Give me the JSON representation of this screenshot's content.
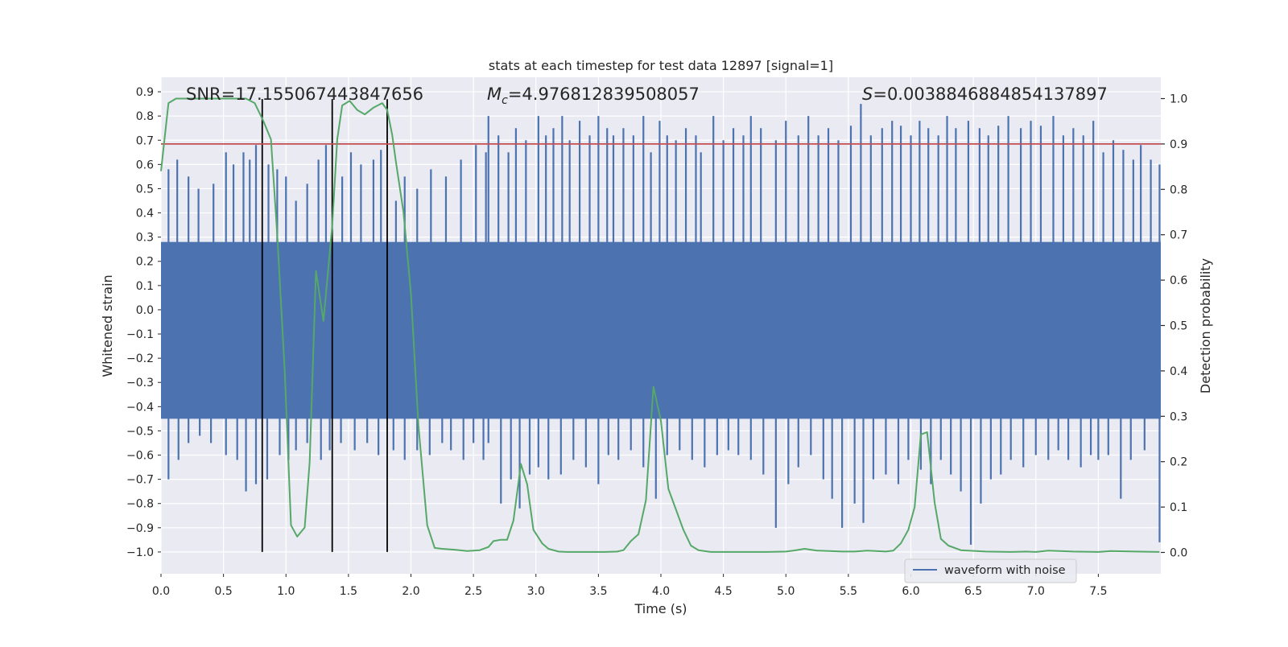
{
  "chart_data": {
    "type": "line",
    "title": "stats at each timestep for test data 12897 [signal=1]",
    "xlabel": "Time (s)",
    "ylabel": "Whitened strain",
    "y2label": "Detection probability",
    "xlim": [
      0.0,
      8.0
    ],
    "ylim": [
      -1.09,
      0.96
    ],
    "y2lim": [
      -0.047,
      1.047
    ],
    "xticks": [
      0.0,
      0.5,
      1.0,
      1.5,
      2.0,
      2.5,
      3.0,
      3.5,
      4.0,
      4.5,
      5.0,
      5.5,
      6.0,
      6.5,
      7.0,
      7.5
    ],
    "xtick_labels": [
      "0.0",
      "0.5",
      "1.0",
      "1.5",
      "2.0",
      "2.5",
      "3.0",
      "3.5",
      "4.0",
      "4.5",
      "5.0",
      "5.5",
      "6.0",
      "6.5",
      "7.0",
      "7.5"
    ],
    "yticks": [
      0.9,
      0.8,
      0.7,
      0.6,
      0.5,
      0.4,
      0.3,
      0.2,
      0.1,
      0.0,
      -0.1,
      -0.2,
      -0.3,
      -0.4,
      -0.5,
      -0.6,
      -0.7,
      -0.8,
      -0.9,
      -1.0
    ],
    "ytick_labels": [
      "0.9",
      "0.8",
      "0.7",
      "0.6",
      "0.5",
      "0.4",
      "0.3",
      "0.2",
      "0.1",
      "0.0",
      "−0.1",
      "−0.2",
      "−0.3",
      "−0.4",
      "−0.5",
      "−0.6",
      "−0.7",
      "−0.8",
      "−0.9",
      "−1.0"
    ],
    "y2ticks": [
      1.0,
      0.9,
      0.8,
      0.7,
      0.6,
      0.5,
      0.4,
      0.3,
      0.2,
      0.1,
      0.0
    ],
    "y2tick_labels": [
      "1.0",
      "0.9",
      "0.8",
      "0.7",
      "0.6",
      "0.5",
      "0.4",
      "0.3",
      "0.2",
      "0.1",
      "0.0"
    ],
    "grid": true,
    "legend": {
      "position": "lower-right",
      "entries": [
        "waveform with noise"
      ]
    },
    "annotations": {
      "snr": "SNR=17.155067443847656",
      "mc_symbol": "M",
      "mc_sub": "c",
      "mc_value": "=4.976812839508057",
      "s_symbol": "S",
      "s_value": "=0.0038846884854137897"
    },
    "threshold": {
      "axis": "y2",
      "value": 0.9,
      "color": "#c44e52"
    },
    "vertical_lines": {
      "x": [
        0.81,
        1.37,
        1.81
      ],
      "ymin": -1.0,
      "ymax": 0.87,
      "color": "#000000"
    },
    "waveform": {
      "name": "waveform with noise",
      "color": "#4c72b0",
      "band_strain": [
        -0.45,
        0.28
      ],
      "peaks": [
        [
          0.06,
          0.58
        ],
        [
          0.13,
          0.62
        ],
        [
          0.22,
          0.55
        ],
        [
          0.3,
          0.5
        ],
        [
          0.42,
          0.52
        ],
        [
          0.52,
          0.65
        ],
        [
          0.58,
          0.6
        ],
        [
          0.66,
          0.65
        ],
        [
          0.71,
          0.62
        ],
        [
          0.76,
          0.68
        ],
        [
          0.86,
          0.6
        ],
        [
          0.93,
          0.58
        ],
        [
          1.0,
          0.55
        ],
        [
          1.08,
          0.45
        ],
        [
          1.17,
          0.52
        ],
        [
          1.26,
          0.62
        ],
        [
          1.32,
          0.68
        ],
        [
          1.45,
          0.55
        ],
        [
          1.52,
          0.65
        ],
        [
          1.6,
          0.6
        ],
        [
          1.7,
          0.62
        ],
        [
          1.76,
          0.66
        ],
        [
          1.88,
          0.45
        ],
        [
          1.95,
          0.55
        ],
        [
          2.05,
          0.5
        ],
        [
          2.16,
          0.58
        ],
        [
          2.28,
          0.55
        ],
        [
          2.4,
          0.62
        ],
        [
          2.52,
          0.68
        ],
        [
          2.6,
          0.65
        ],
        [
          2.62,
          0.8
        ],
        [
          2.7,
          0.72
        ],
        [
          2.78,
          0.65
        ],
        [
          2.84,
          0.75
        ],
        [
          2.92,
          0.7
        ],
        [
          3.02,
          0.8
        ],
        [
          3.08,
          0.72
        ],
        [
          3.14,
          0.75
        ],
        [
          3.21,
          0.8
        ],
        [
          3.27,
          0.7
        ],
        [
          3.35,
          0.78
        ],
        [
          3.43,
          0.72
        ],
        [
          3.5,
          0.8
        ],
        [
          3.57,
          0.75
        ],
        [
          3.62,
          0.72
        ],
        [
          3.7,
          0.75
        ],
        [
          3.78,
          0.72
        ],
        [
          3.86,
          0.8
        ],
        [
          3.92,
          0.65
        ],
        [
          3.99,
          0.78
        ],
        [
          4.05,
          0.72
        ],
        [
          4.12,
          0.7
        ],
        [
          4.2,
          0.75
        ],
        [
          4.28,
          0.72
        ],
        [
          4.32,
          0.65
        ],
        [
          4.42,
          0.8
        ],
        [
          4.5,
          0.7
        ],
        [
          4.58,
          0.75
        ],
        [
          4.66,
          0.72
        ],
        [
          4.72,
          0.8
        ],
        [
          4.8,
          0.75
        ],
        [
          4.92,
          0.7
        ],
        [
          5.0,
          0.78
        ],
        [
          5.1,
          0.72
        ],
        [
          5.18,
          0.8
        ],
        [
          5.26,
          0.72
        ],
        [
          5.34,
          0.75
        ],
        [
          5.42,
          0.7
        ],
        [
          5.52,
          0.76
        ],
        [
          5.6,
          0.85
        ],
        [
          5.68,
          0.72
        ],
        [
          5.77,
          0.75
        ],
        [
          5.85,
          0.78
        ],
        [
          5.92,
          0.76
        ],
        [
          6.0,
          0.72
        ],
        [
          6.07,
          0.78
        ],
        [
          6.14,
          0.75
        ],
        [
          6.22,
          0.72
        ],
        [
          6.29,
          0.8
        ],
        [
          6.36,
          0.75
        ],
        [
          6.46,
          0.78
        ],
        [
          6.55,
          0.75
        ],
        [
          6.62,
          0.72
        ],
        [
          6.7,
          0.76
        ],
        [
          6.78,
          0.8
        ],
        [
          6.88,
          0.75
        ],
        [
          6.96,
          0.78
        ],
        [
          7.04,
          0.76
        ],
        [
          7.14,
          0.8
        ],
        [
          7.22,
          0.72
        ],
        [
          7.3,
          0.75
        ],
        [
          7.38,
          0.72
        ],
        [
          7.46,
          0.78
        ],
        [
          7.54,
          0.65
        ],
        [
          7.62,
          0.7
        ],
        [
          7.7,
          0.66
        ],
        [
          7.78,
          0.62
        ],
        [
          7.84,
          0.68
        ],
        [
          7.92,
          0.62
        ],
        [
          7.99,
          0.6
        ]
      ],
      "troughs": [
        [
          0.06,
          -0.7
        ],
        [
          0.14,
          -0.62
        ],
        [
          0.22,
          -0.55
        ],
        [
          0.31,
          -0.52
        ],
        [
          0.4,
          -0.55
        ],
        [
          0.52,
          -0.6
        ],
        [
          0.61,
          -0.62
        ],
        [
          0.68,
          -0.75
        ],
        [
          0.76,
          -0.72
        ],
        [
          0.85,
          -0.7
        ],
        [
          0.95,
          -0.6
        ],
        [
          1.02,
          -0.62
        ],
        [
          1.08,
          -0.58
        ],
        [
          1.17,
          -0.55
        ],
        [
          1.28,
          -0.62
        ],
        [
          1.35,
          -0.58
        ],
        [
          1.44,
          -0.55
        ],
        [
          1.55,
          -0.58
        ],
        [
          1.65,
          -0.55
        ],
        [
          1.74,
          -0.6
        ],
        [
          1.86,
          -0.58
        ],
        [
          1.95,
          -0.62
        ],
        [
          2.05,
          -0.58
        ],
        [
          2.15,
          -0.6
        ],
        [
          2.25,
          -0.55
        ],
        [
          2.32,
          -0.58
        ],
        [
          2.42,
          -0.62
        ],
        [
          2.5,
          -0.55
        ],
        [
          2.58,
          -0.62
        ],
        [
          2.62,
          -0.55
        ],
        [
          2.72,
          -0.8
        ],
        [
          2.8,
          -0.7
        ],
        [
          2.87,
          -0.82
        ],
        [
          2.95,
          -0.68
        ],
        [
          3.02,
          -0.65
        ],
        [
          3.1,
          -0.7
        ],
        [
          3.2,
          -0.68
        ],
        [
          3.3,
          -0.62
        ],
        [
          3.4,
          -0.65
        ],
        [
          3.5,
          -0.72
        ],
        [
          3.58,
          -0.6
        ],
        [
          3.66,
          -0.62
        ],
        [
          3.76,
          -0.58
        ],
        [
          3.86,
          -0.65
        ],
        [
          3.96,
          -0.78
        ],
        [
          4.05,
          -0.6
        ],
        [
          4.15,
          -0.58
        ],
        [
          4.25,
          -0.62
        ],
        [
          4.35,
          -0.65
        ],
        [
          4.45,
          -0.6
        ],
        [
          4.54,
          -0.58
        ],
        [
          4.62,
          -0.6
        ],
        [
          4.72,
          -0.62
        ],
        [
          4.82,
          -0.68
        ],
        [
          4.92,
          -0.9
        ],
        [
          5.02,
          -0.72
        ],
        [
          5.1,
          -0.65
        ],
        [
          5.2,
          -0.6
        ],
        [
          5.3,
          -0.7
        ],
        [
          5.37,
          -0.78
        ],
        [
          5.45,
          -0.9
        ],
        [
          5.55,
          -0.8
        ],
        [
          5.62,
          -0.88
        ],
        [
          5.7,
          -0.7
        ],
        [
          5.8,
          -0.68
        ],
        [
          5.9,
          -0.72
        ],
        [
          5.98,
          -0.62
        ],
        [
          6.08,
          -0.66
        ],
        [
          6.16,
          -0.72
        ],
        [
          6.24,
          -0.62
        ],
        [
          6.32,
          -0.68
        ],
        [
          6.4,
          -0.75
        ],
        [
          6.48,
          -0.97
        ],
        [
          6.56,
          -0.8
        ],
        [
          6.64,
          -0.7
        ],
        [
          6.72,
          -0.68
        ],
        [
          6.8,
          -0.62
        ],
        [
          6.9,
          -0.65
        ],
        [
          7.0,
          -0.6
        ],
        [
          7.1,
          -0.62
        ],
        [
          7.18,
          -0.58
        ],
        [
          7.26,
          -0.62
        ],
        [
          7.36,
          -0.65
        ],
        [
          7.44,
          -0.6
        ],
        [
          7.5,
          -0.62
        ],
        [
          7.58,
          -0.6
        ],
        [
          7.68,
          -0.78
        ],
        [
          7.76,
          -0.62
        ],
        [
          7.87,
          -0.58
        ],
        [
          7.99,
          -0.96
        ]
      ]
    },
    "probability": {
      "name": "detection probability",
      "color": "#55a868",
      "x": [
        0.0,
        0.06,
        0.12,
        0.2,
        0.3,
        0.4,
        0.5,
        0.6,
        0.68,
        0.75,
        0.82,
        0.88,
        0.93,
        0.99,
        1.04,
        1.09,
        1.15,
        1.19,
        1.24,
        1.3,
        1.37,
        1.41,
        1.45,
        1.51,
        1.57,
        1.63,
        1.7,
        1.77,
        1.81,
        1.85,
        1.88,
        1.94,
        2.0,
        2.06,
        2.13,
        2.19,
        2.25,
        2.35,
        2.45,
        2.55,
        2.62,
        2.66,
        2.72,
        2.77,
        2.82,
        2.88,
        2.93,
        2.98,
        3.05,
        3.1,
        3.18,
        3.25,
        3.4,
        3.55,
        3.65,
        3.7,
        3.76,
        3.82,
        3.88,
        3.94,
        4.0,
        4.06,
        4.12,
        4.18,
        4.24,
        4.3,
        4.4,
        4.6,
        4.85,
        5.0,
        5.06,
        5.15,
        5.25,
        5.35,
        5.45,
        5.55,
        5.65,
        5.72,
        5.8,
        5.86,
        5.92,
        5.98,
        6.03,
        6.08,
        6.13,
        6.19,
        6.24,
        6.3,
        6.4,
        6.6,
        6.8,
        6.92,
        7.0,
        7.1,
        7.3,
        7.5,
        7.6,
        7.8,
        7.99
      ],
      "y": [
        0.84,
        0.99,
        1.0,
        1.0,
        1.0,
        1.0,
        1.0,
        1.0,
        1.0,
        0.99,
        0.95,
        0.91,
        0.7,
        0.4,
        0.06,
        0.035,
        0.055,
        0.2,
        0.62,
        0.51,
        0.72,
        0.91,
        0.985,
        0.995,
        0.975,
        0.965,
        0.98,
        0.99,
        0.975,
        0.92,
        0.86,
        0.75,
        0.57,
        0.28,
        0.06,
        0.01,
        0.008,
        0.006,
        0.003,
        0.005,
        0.012,
        0.025,
        0.028,
        0.028,
        0.07,
        0.195,
        0.15,
        0.05,
        0.02,
        0.008,
        0.002,
        0.001,
        0.001,
        0.001,
        0.002,
        0.005,
        0.025,
        0.04,
        0.115,
        0.365,
        0.29,
        0.14,
        0.095,
        0.05,
        0.015,
        0.005,
        0.001,
        0.001,
        0.001,
        0.002,
        0.004,
        0.008,
        0.004,
        0.003,
        0.002,
        0.002,
        0.004,
        0.003,
        0.002,
        0.004,
        0.02,
        0.05,
        0.1,
        0.26,
        0.265,
        0.11,
        0.03,
        0.015,
        0.005,
        0.002,
        0.001,
        0.002,
        0.001,
        0.004,
        0.002,
        0.001,
        0.003,
        0.002,
        0.001
      ]
    }
  }
}
